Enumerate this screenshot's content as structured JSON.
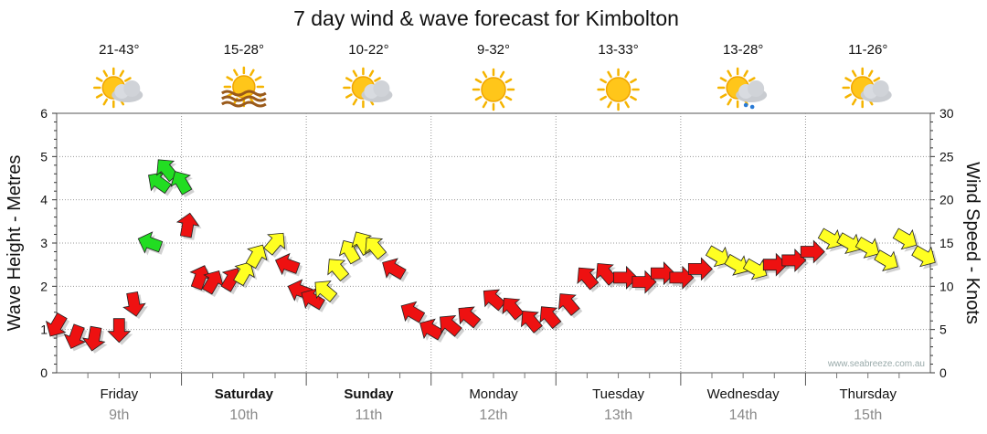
{
  "chart_data": {
    "type": "line",
    "title": "7 day wind & wave forecast for Kimbolton",
    "ylabel_left": "Wave Height - Metres",
    "ylabel_right": "Wind Speed - Knots",
    "ylim_left": [
      0,
      6
    ],
    "ylim_right": [
      0,
      30
    ],
    "yticks_left": [
      "0",
      "1",
      "2",
      "3",
      "4",
      "5",
      "6"
    ],
    "yticks_right": [
      "0",
      "5",
      "10",
      "15",
      "20",
      "25",
      "30"
    ],
    "watermark": "www.seabreeze.com.au",
    "days": [
      {
        "name": "Friday",
        "date": "9th",
        "temp": "21-43°",
        "icon": "partly-cloudy-sun-icon",
        "bold": false
      },
      {
        "name": "Saturday",
        "date": "10th",
        "temp": "15-28°",
        "icon": "sun-haze-icon",
        "bold": true
      },
      {
        "name": "Sunday",
        "date": "11th",
        "temp": "10-22°",
        "icon": "partly-cloudy-sun-icon",
        "bold": true
      },
      {
        "name": "Monday",
        "date": "12th",
        "temp": "9-32°",
        "icon": "sunny-icon",
        "bold": false
      },
      {
        "name": "Tuesday",
        "date": "13th",
        "temp": "13-33°",
        "icon": "sunny-icon",
        "bold": false
      },
      {
        "name": "Wednesday",
        "date": "14th",
        "temp": "13-28°",
        "icon": "sun-cloud-rain-icon",
        "bold": false
      },
      {
        "name": "Thursday",
        "date": "15th",
        "temp": "11-26°",
        "icon": "partly-cloudy-sun-icon",
        "bold": false
      }
    ],
    "colors": {
      "green": "#22dd22",
      "yellow": "#ffff22",
      "red": "#ee1111"
    },
    "series": [
      {
        "name": "Wind Speed",
        "axis": "right",
        "unit": "knots",
        "x": [
          0.0,
          0.15,
          0.3,
          0.5,
          0.62,
          0.75,
          0.82,
          0.88,
          1.0,
          1.05,
          1.15,
          1.25,
          1.4,
          1.5,
          1.6,
          1.75,
          1.85,
          1.95,
          2.05,
          2.15,
          2.25,
          2.35,
          2.45,
          2.55,
          2.7,
          2.85,
          3.0,
          3.15,
          3.3,
          3.5,
          3.65,
          3.8,
          3.95,
          4.1,
          4.25,
          4.4,
          4.55,
          4.7,
          4.85,
          5.0,
          5.15,
          5.3,
          5.45,
          5.6,
          5.75,
          5.9,
          6.05,
          6.2,
          6.35,
          6.5,
          6.65,
          6.8,
          6.95
        ],
        "values": [
          5.5,
          4.2,
          4.0,
          5.0,
          8.0,
          15.0,
          22.0,
          23.5,
          22.0,
          17.0,
          11.0,
          10.5,
          10.8,
          11.5,
          13.5,
          15.0,
          12.5,
          9.5,
          8.5,
          9.5,
          12.0,
          14.0,
          15.0,
          14.5,
          12.0,
          7.0,
          5.0,
          5.5,
          6.5,
          8.5,
          7.5,
          6.0,
          6.5,
          8.0,
          11.0,
          11.5,
          11.0,
          10.5,
          11.5,
          11.0,
          12.0,
          13.5,
          12.5,
          12.0,
          12.5,
          13.0,
          14.0,
          15.5,
          15.0,
          14.5,
          13.0,
          15.5,
          13.5
        ],
        "colors": [
          "red",
          "red",
          "red",
          "red",
          "red",
          "green",
          "green",
          "green",
          "green",
          "red",
          "red",
          "red",
          "red",
          "yellow",
          "yellow",
          "yellow",
          "red",
          "red",
          "red",
          "yellow",
          "yellow",
          "yellow",
          "yellow",
          "yellow",
          "red",
          "red",
          "red",
          "red",
          "red",
          "red",
          "red",
          "red",
          "red",
          "red",
          "red",
          "red",
          "red",
          "red",
          "red",
          "red",
          "red",
          "yellow",
          "yellow",
          "yellow",
          "red",
          "red",
          "red",
          "yellow",
          "yellow",
          "yellow",
          "yellow",
          "yellow",
          "yellow"
        ],
        "directions_deg": [
          120,
          110,
          100,
          90,
          80,
          200,
          215,
          230,
          240,
          280,
          290,
          300,
          300,
          300,
          300,
          310,
          200,
          200,
          210,
          220,
          230,
          240,
          240,
          230,
          210,
          210,
          210,
          220,
          220,
          220,
          230,
          230,
          230,
          230,
          230,
          230,
          0,
          0,
          0,
          0,
          0,
          30,
          30,
          30,
          0,
          0,
          0,
          30,
          30,
          30,
          30,
          30,
          30
        ]
      }
    ]
  }
}
